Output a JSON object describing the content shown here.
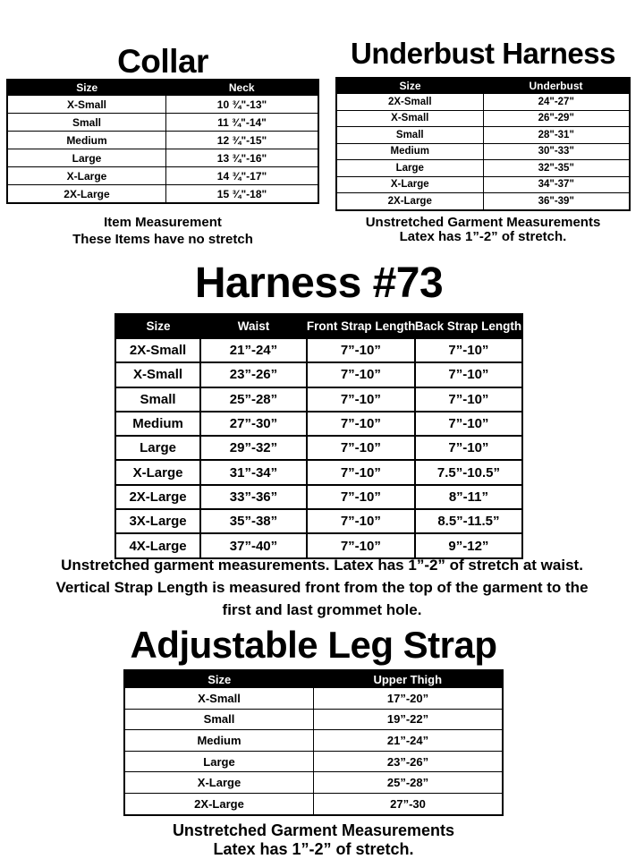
{
  "page": {
    "background_color": "#ffffff",
    "text_color": "#000000",
    "table_header_bg": "#000000",
    "table_header_text": "#ffffff"
  },
  "collar": {
    "title": "Collar",
    "columns": [
      "Size",
      "Neck"
    ],
    "rows": [
      [
        "X-Small",
        "10 ¾\"-13\""
      ],
      [
        "Small",
        "11 ¾\"-14\""
      ],
      [
        "Medium",
        "12 ¾\"-15\""
      ],
      [
        "Large",
        "13 ¾\"-16\""
      ],
      [
        "X-Large",
        "14 ¾\"-17\""
      ],
      [
        "2X-Large",
        "15 ¾\"-18\""
      ]
    ],
    "notes": [
      "Item Measurement",
      "These Items have no stretch"
    ]
  },
  "underbust": {
    "title": "Underbust Harness",
    "columns": [
      "Size",
      "Underbust"
    ],
    "rows": [
      [
        "2X-Small",
        "24\"-27\""
      ],
      [
        "X-Small",
        "26\"-29\""
      ],
      [
        "Small",
        "28\"-31\""
      ],
      [
        "Medium",
        "30\"-33\""
      ],
      [
        "Large",
        "32\"-35\""
      ],
      [
        "X-Large",
        "34\"-37\""
      ],
      [
        "2X-Large",
        "36\"-39\""
      ]
    ],
    "notes": [
      "Unstretched Garment Measurements",
      "Latex has 1”-2” of stretch."
    ]
  },
  "harness": {
    "title": "Harness #73",
    "columns": [
      "Size",
      "Waist",
      "Front Strap Length",
      "Back Strap Length"
    ],
    "rows": [
      [
        "2X-Small",
        "21”-24”",
        "7”-10”",
        "7”-10”"
      ],
      [
        "X-Small",
        "23”-26”",
        "7”-10”",
        "7”-10”"
      ],
      [
        "Small",
        "25”-28”",
        "7”-10”",
        "7”-10”"
      ],
      [
        "Medium",
        "27”-30”",
        "7”-10”",
        "7”-10”"
      ],
      [
        "Large",
        "29”-32”",
        "7”-10”",
        "7”-10”"
      ],
      [
        "X-Large",
        "31”-34”",
        "7”-10”",
        "7.5”-10.5”"
      ],
      [
        "2X-Large",
        "33”-36”",
        "7”-10”",
        "8”-11”"
      ],
      [
        "3X-Large",
        "35”-38”",
        "7”-10”",
        "8.5”-11.5”"
      ],
      [
        "4X-Large",
        "37”-40”",
        "7”-10”",
        "9”-12”"
      ]
    ],
    "notes": [
      "Unstretched garment measurements. Latex has 1”-2” of stretch at waist.",
      "Vertical Strap Length is measured front from the top of the garment to the",
      "first and last grommet hole."
    ]
  },
  "legstrap": {
    "title": "Adjustable Leg Strap",
    "columns": [
      "Size",
      "Upper Thigh"
    ],
    "rows": [
      [
        "X-Small",
        "17”-20”"
      ],
      [
        "Small",
        "19”-22”"
      ],
      [
        "Medium",
        "21”-24”"
      ],
      [
        "Large",
        "23”-26”"
      ],
      [
        "X-Large",
        "25”-28”"
      ],
      [
        "2X-Large",
        "27”-30"
      ]
    ],
    "notes": [
      "Unstretched Garment Measurements",
      "Latex has 1”-2” of stretch."
    ]
  }
}
